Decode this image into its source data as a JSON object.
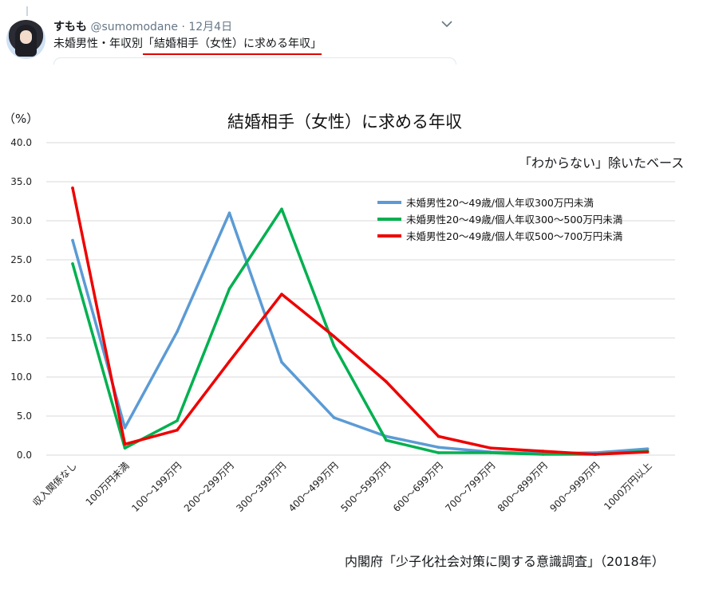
{
  "tweet": {
    "display_name": "すもも",
    "handle": "@sumomodane",
    "separator": "·",
    "date": "12月4日",
    "text_prefix": "未婚男性・年収別",
    "text_highlight": "「結婚相手（女性）に求める年収」"
  },
  "icons": {
    "avatar": "user-avatar-icon",
    "menu": "chevron-down-icon"
  },
  "colors": {
    "series_blue": "#5b9bd5",
    "series_green": "#00b050",
    "series_red": "#ee0000",
    "underline": "#e00000",
    "grid": "#d9d9d9"
  },
  "chart_data": {
    "type": "line",
    "title": "結婚相手（女性）に求める年収",
    "ylabel": "（%）",
    "note": "「わからない」除いたベース",
    "source": "内閣府「少子化社会対策に関する意識調査」（2018年）",
    "ylim": [
      0,
      40
    ],
    "yticks": [
      "40.0",
      "35.0",
      "30.0",
      "25.0",
      "20.0",
      "15.0",
      "10.0",
      "5.0",
      "0.0"
    ],
    "grid": true,
    "legend_position": "top-right",
    "categories": [
      "収入関係なし",
      "100万円未満",
      "100〜199万円",
      "200〜299万円",
      "300〜399万円",
      "400〜499万円",
      "500〜599万円",
      "600〜699万円",
      "700〜799万円",
      "800〜899万円",
      "900〜999万円",
      "1000万円以上"
    ],
    "series": [
      {
        "name": "未婚男性20〜49歳/個人年収300万円未満",
        "color": "#5b9bd5",
        "values": [
          27.5,
          3.5,
          15.8,
          31.0,
          11.9,
          4.8,
          2.4,
          1.0,
          0.4,
          0.2,
          0.3,
          0.8
        ]
      },
      {
        "name": "未婚男性20〜49歳/個人年収300〜500万円未満",
        "color": "#00b050",
        "values": [
          24.5,
          0.9,
          4.4,
          21.3,
          31.5,
          14.0,
          1.9,
          0.3,
          0.3,
          0.1,
          0.1,
          0.5
        ]
      },
      {
        "name": "未婚男性20〜49歳/個人年収500〜700万円未満",
        "color": "#ee0000",
        "values": [
          34.2,
          1.4,
          3.2,
          12.0,
          20.6,
          15.2,
          9.4,
          2.4,
          0.9,
          0.5,
          0.1,
          0.4
        ]
      }
    ]
  }
}
